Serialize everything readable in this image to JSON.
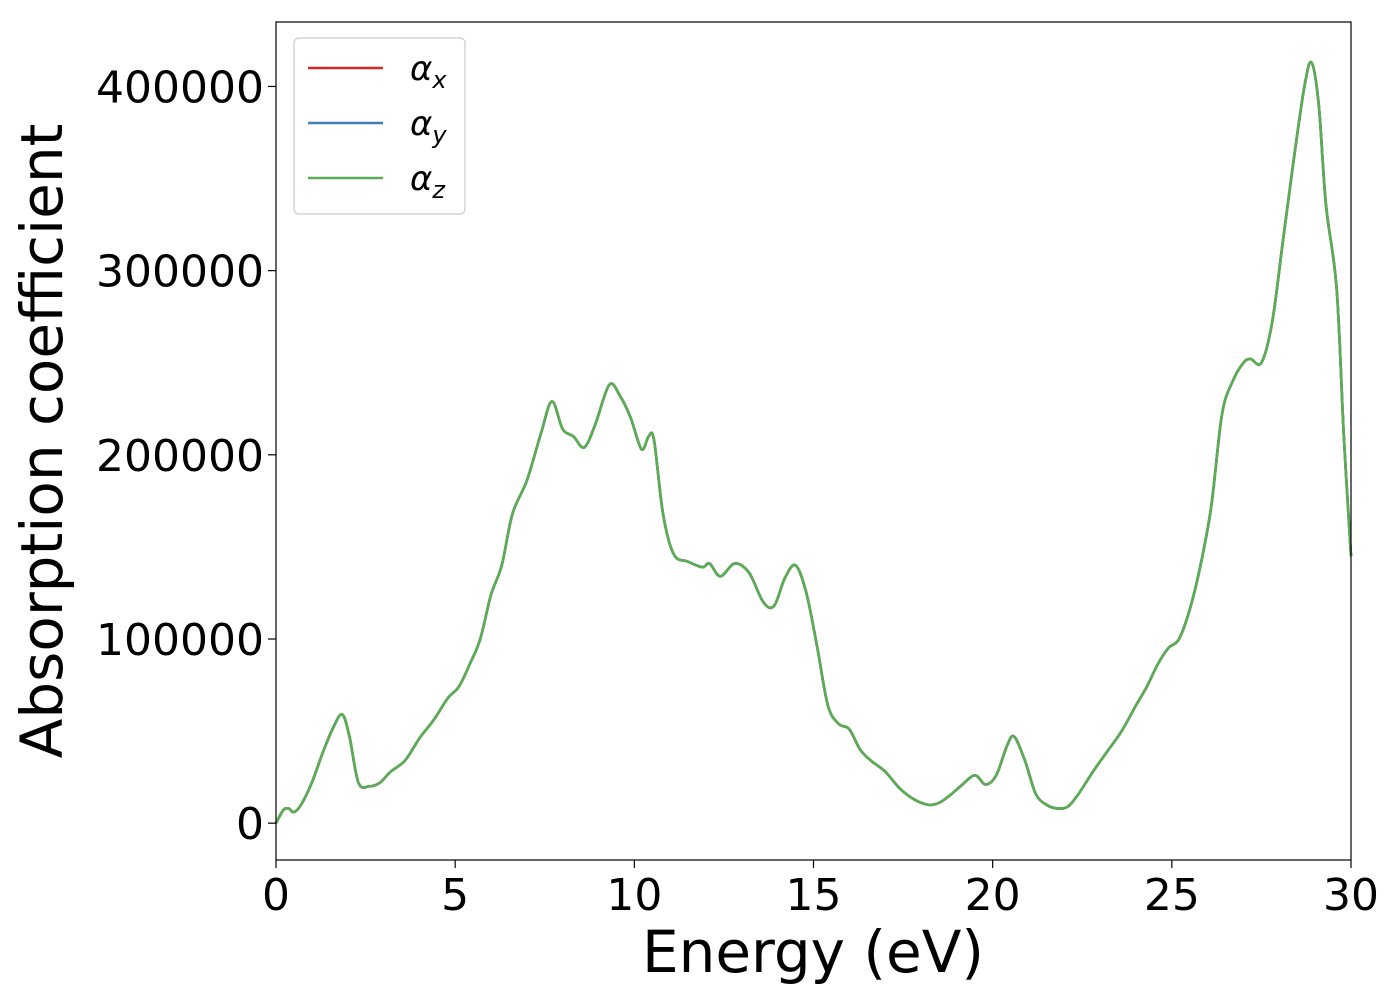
{
  "chart_data": {
    "type": "line",
    "title": "",
    "xlabel": "Energy (eV)",
    "ylabel": "Absorption coefficient",
    "xlim": [
      0,
      30
    ],
    "ylim": [
      -20000,
      435000
    ],
    "xticks": [
      0,
      5,
      10,
      15,
      20,
      25,
      30
    ],
    "yticks": [
      0,
      100000,
      200000,
      300000,
      400000
    ],
    "xtick_labels": [
      "0",
      "5",
      "10",
      "15",
      "20",
      "25",
      "30"
    ],
    "ytick_labels": [
      "0",
      "100000",
      "200000",
      "300000",
      "400000"
    ],
    "grid": false,
    "legend_position": "top-left",
    "x": [
      0,
      0.2,
      0.35,
      0.5,
      0.7,
      1.0,
      1.3,
      1.6,
      1.85,
      2.05,
      2.3,
      2.6,
      2.9,
      3.2,
      3.6,
      4.0,
      4.4,
      4.8,
      5.1,
      5.4,
      5.7,
      6.0,
      6.3,
      6.6,
      7.0,
      7.4,
      7.7,
      8.0,
      8.3,
      8.6,
      8.9,
      9.3,
      9.6,
      9.9,
      10.2,
      10.4,
      10.55,
      10.8,
      11.1,
      11.5,
      11.9,
      12.1,
      12.4,
      12.8,
      13.2,
      13.6,
      13.9,
      14.2,
      14.5,
      14.8,
      15.1,
      15.4,
      15.7,
      16.0,
      16.3,
      16.6,
      17.0,
      17.4,
      17.8,
      18.2,
      18.5,
      18.8,
      19.1,
      19.5,
      19.8,
      20.1,
      20.4,
      20.6,
      20.9,
      21.2,
      21.5,
      21.8,
      22.1,
      22.4,
      22.8,
      23.2,
      23.6,
      24.0,
      24.3,
      24.6,
      24.9,
      25.2,
      25.5,
      25.8,
      26.1,
      26.4,
      26.7,
      27.0,
      27.2,
      27.5,
      27.8,
      28.1,
      28.4,
      28.7,
      28.9,
      29.1,
      29.3,
      29.6,
      29.8,
      30.0
    ],
    "series": [
      {
        "name": "αx",
        "color": "#d62728",
        "values": [
          0,
          7000,
          8000,
          6000,
          10000,
          22000,
          38000,
          52000,
          59000,
          47000,
          22000,
          20000,
          22000,
          28000,
          34000,
          46000,
          56000,
          68000,
          74000,
          86000,
          100000,
          124000,
          140000,
          168000,
          186000,
          212000,
          229000,
          214000,
          210000,
          204000,
          216000,
          238000,
          232000,
          220000,
          203000,
          210000,
          208000,
          168000,
          146000,
          142000,
          139000,
          141000,
          134000,
          141000,
          136000,
          120000,
          118000,
          133000,
          140000,
          125000,
          96000,
          64000,
          54000,
          51000,
          40000,
          34000,
          28000,
          19000,
          13000,
          10000,
          11000,
          15000,
          20000,
          26000,
          21000,
          26000,
          42000,
          47000,
          34000,
          16000,
          10000,
          8000,
          9000,
          16000,
          28000,
          39000,
          50000,
          64000,
          74000,
          86000,
          95000,
          100000,
          116000,
          140000,
          172000,
          222000,
          240000,
          250000,
          252000,
          250000,
          272000,
          316000,
          360000,
          400000,
          413000,
          390000,
          336000,
          290000,
          210000,
          145000
        ]
      },
      {
        "name": "αy",
        "color": "#3f7fb5",
        "values": [
          0,
          7000,
          8000,
          6000,
          10000,
          22000,
          38000,
          52000,
          59000,
          47000,
          22000,
          20000,
          22000,
          28000,
          34000,
          46000,
          56000,
          68000,
          74000,
          86000,
          100000,
          124000,
          140000,
          168000,
          186000,
          212000,
          229000,
          214000,
          210000,
          204000,
          216000,
          238000,
          232000,
          220000,
          203000,
          210000,
          208000,
          168000,
          146000,
          142000,
          139000,
          141000,
          134000,
          141000,
          136000,
          120000,
          118000,
          133000,
          140000,
          125000,
          96000,
          64000,
          54000,
          51000,
          40000,
          34000,
          28000,
          19000,
          13000,
          10000,
          11000,
          15000,
          20000,
          26000,
          21000,
          26000,
          42000,
          47000,
          34000,
          16000,
          10000,
          8000,
          9000,
          16000,
          28000,
          39000,
          50000,
          64000,
          74000,
          86000,
          95000,
          100000,
          116000,
          140000,
          172000,
          222000,
          240000,
          250000,
          252000,
          250000,
          272000,
          316000,
          360000,
          400000,
          413000,
          390000,
          336000,
          290000,
          210000,
          145000
        ]
      },
      {
        "name": "αz",
        "color": "#5aad52",
        "values": [
          0,
          7000,
          8000,
          6000,
          10000,
          22000,
          38000,
          52000,
          59000,
          47000,
          22000,
          20000,
          22000,
          28000,
          34000,
          46000,
          56000,
          68000,
          74000,
          86000,
          100000,
          124000,
          140000,
          168000,
          186000,
          212000,
          229000,
          214000,
          210000,
          204000,
          216000,
          238000,
          232000,
          220000,
          203000,
          210000,
          208000,
          168000,
          146000,
          142000,
          139000,
          141000,
          134000,
          141000,
          136000,
          120000,
          118000,
          133000,
          140000,
          125000,
          96000,
          64000,
          54000,
          51000,
          40000,
          34000,
          28000,
          19000,
          13000,
          10000,
          11000,
          15000,
          20000,
          26000,
          21000,
          26000,
          42000,
          47000,
          34000,
          16000,
          10000,
          8000,
          9000,
          16000,
          28000,
          39000,
          50000,
          64000,
          74000,
          86000,
          95000,
          100000,
          116000,
          140000,
          172000,
          222000,
          240000,
          250000,
          252000,
          250000,
          272000,
          316000,
          360000,
          400000,
          413000,
          390000,
          336000,
          290000,
          210000,
          145000
        ]
      }
    ],
    "legend": [
      {
        "symbol": "α",
        "subscript": "x",
        "color": "#d62728"
      },
      {
        "symbol": "α",
        "subscript": "y",
        "color": "#3f7fb5"
      },
      {
        "symbol": "α",
        "subscript": "z",
        "color": "#5aad52"
      }
    ]
  }
}
